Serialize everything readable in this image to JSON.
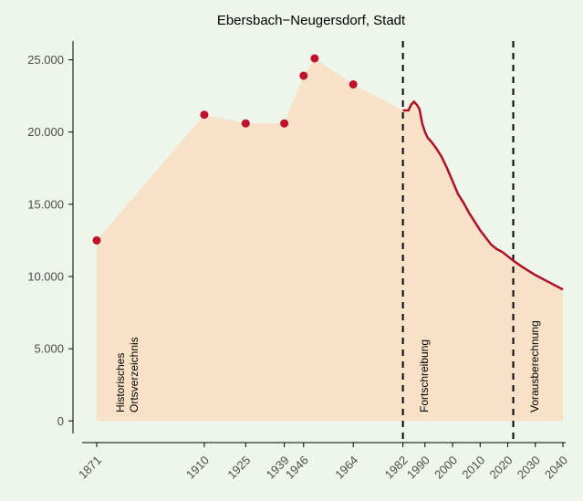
{
  "chart_data": {
    "type": "area",
    "title": "Ebersbach−Neugersdorf, Stadt",
    "series": [
      {
        "color": "#c0102e",
        "x": [
          1871,
          1910,
          1925,
          1939,
          1946,
          1950,
          1964
        ],
        "values": [
          12500,
          21200,
          20600,
          20600,
          23900,
          25100,
          23300
        ]
      },
      {
        "color": "#b0102a",
        "x": [
          1982,
          1983,
          1984,
          1985,
          1986,
          1987,
          1988,
          1989,
          1990,
          1991,
          1992,
          1994,
          1996,
          1998,
          2000,
          2002,
          2004,
          2006,
          2008,
          2010,
          2012,
          2014,
          2016,
          2018,
          2020,
          2022,
          2025,
          2030,
          2035,
          2040
        ],
        "values": [
          21500,
          21500,
          21500,
          21900,
          22100,
          21900,
          21600,
          20600,
          20000,
          19600,
          19400,
          18900,
          18300,
          17500,
          16600,
          15700,
          15100,
          14400,
          13800,
          13200,
          12700,
          12200,
          11900,
          11700,
          11400,
          11100,
          10700,
          10100,
          9600,
          9100
        ]
      }
    ],
    "area_color": "#f7e1c7",
    "period_lines": [
      1982,
      2022
    ],
    "annotations": [
      {
        "text": "Historisches\nOrtsverzeichnis",
        "x": 1881
      },
      {
        "text": "Fortschreibung",
        "x": 1991
      },
      {
        "text": "Vorausberechnung",
        "x": 2031
      }
    ],
    "xlim": [
      1862.4,
      2041
    ],
    "ylim": [
      -1500,
      26300
    ],
    "xticks": [
      1871,
      1910,
      1925,
      1939,
      1946,
      1964,
      1982,
      1990,
      2000,
      2010,
      2020,
      2030,
      2040
    ],
    "yticks": [
      0,
      {
        "value": 5000,
        "label": "5.000"
      },
      {
        "value": 10000,
        "label": "10.000"
      },
      {
        "value": 15000,
        "label": "15.000"
      },
      {
        "value": 20000,
        "label": "20.000"
      },
      {
        "value": 25000,
        "label": "25.000"
      }
    ]
  }
}
